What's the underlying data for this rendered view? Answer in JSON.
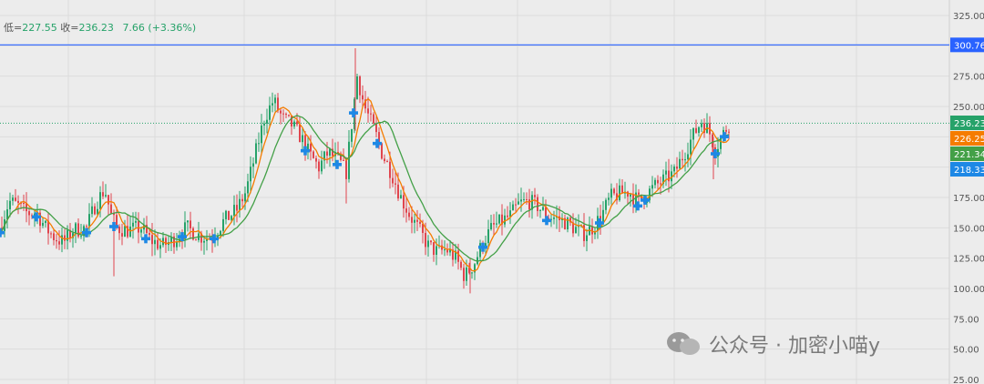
{
  "ohlc_bar": {
    "low_label": "低=",
    "low_value": "227.55",
    "close_label": "收=",
    "close_value": "236.23",
    "change": "7.66 (+3.36%)"
  },
  "price_axis": {
    "ticks": [
      "325.00",
      "275.00",
      "250.00",
      "175.00",
      "150.00",
      "125.00",
      "100.00",
      "75.00",
      "50.00",
      "25.00"
    ],
    "tags": [
      {
        "label": "300.76",
        "color": "#2962ff"
      },
      {
        "label": "236.23",
        "color": "#26a269"
      },
      {
        "label": "226.25",
        "color": "#f57c00"
      },
      {
        "label": "221.34",
        "color": "#43a047"
      },
      {
        "label": "218.33",
        "color": "#1e88e5"
      }
    ]
  },
  "watermark": {
    "text": "公众号 · 加密小喵y",
    "icon": "wechat-icon"
  },
  "chart_data": {
    "type": "candlestick",
    "horizontal_line": {
      "value": 300.76,
      "color": "#2962ff"
    },
    "last_price_line": {
      "value": 236.23,
      "color": "#26a269"
    },
    "ma_fast_color": "#f57c00",
    "ma_slow_color": "#43a047",
    "marker_color": "#1e88e5",
    "ylim": [
      25,
      325
    ],
    "grid": true,
    "approx_close_path": [
      [
        0,
        150
      ],
      [
        10,
        172
      ],
      [
        20,
        168
      ],
      [
        30,
        162
      ],
      [
        40,
        163
      ],
      [
        50,
        150
      ],
      [
        60,
        142
      ],
      [
        70,
        138
      ],
      [
        80,
        148
      ],
      [
        95,
        150
      ],
      [
        105,
        170
      ],
      [
        115,
        182
      ],
      [
        122,
        160
      ],
      [
        128,
        150
      ],
      [
        140,
        148
      ],
      [
        155,
        150
      ],
      [
        165,
        140
      ],
      [
        178,
        135
      ],
      [
        190,
        140
      ],
      [
        205,
        150
      ],
      [
        220,
        143
      ],
      [
        232,
        142
      ],
      [
        245,
        155
      ],
      [
        260,
        165
      ],
      [
        270,
        180
      ],
      [
        280,
        210
      ],
      [
        290,
        240
      ],
      [
        300,
        255
      ],
      [
        310,
        240
      ],
      [
        320,
        235
      ],
      [
        330,
        225
      ],
      [
        340,
        210
      ],
      [
        350,
        200
      ],
      [
        360,
        212
      ],
      [
        372,
        205
      ],
      [
        380,
        196
      ],
      [
        392,
        275
      ],
      [
        400,
        250
      ],
      [
        412,
        228
      ],
      [
        420,
        210
      ],
      [
        430,
        195
      ],
      [
        440,
        175
      ],
      [
        450,
        160
      ],
      [
        460,
        148
      ],
      [
        470,
        135
      ],
      [
        480,
        130
      ],
      [
        490,
        132
      ],
      [
        500,
        125
      ],
      [
        510,
        110
      ],
      [
        520,
        120
      ],
      [
        530,
        138
      ],
      [
        540,
        150
      ],
      [
        550,
        155
      ],
      [
        560,
        160
      ],
      [
        570,
        170
      ],
      [
        580,
        172
      ],
      [
        590,
        168
      ],
      [
        600,
        160
      ],
      [
        610,
        158
      ],
      [
        620,
        155
      ],
      [
        630,
        150
      ],
      [
        640,
        145
      ],
      [
        650,
        150
      ],
      [
        660,
        160
      ],
      [
        670,
        175
      ],
      [
        680,
        178
      ],
      [
        690,
        180
      ],
      [
        700,
        172
      ],
      [
        710,
        178
      ],
      [
        720,
        185
      ],
      [
        730,
        190
      ],
      [
        740,
        195
      ],
      [
        750,
        210
      ],
      [
        760,
        225
      ],
      [
        770,
        238
      ],
      [
        778,
        230
      ],
      [
        785,
        215
      ],
      [
        792,
        225
      ],
      [
        800,
        236
      ]
    ],
    "markers_x": [
      0,
      40,
      95,
      125,
      160,
      200,
      235,
      335,
      370,
      388,
      414,
      530,
      600,
      658,
      700,
      708,
      785,
      795
    ]
  }
}
